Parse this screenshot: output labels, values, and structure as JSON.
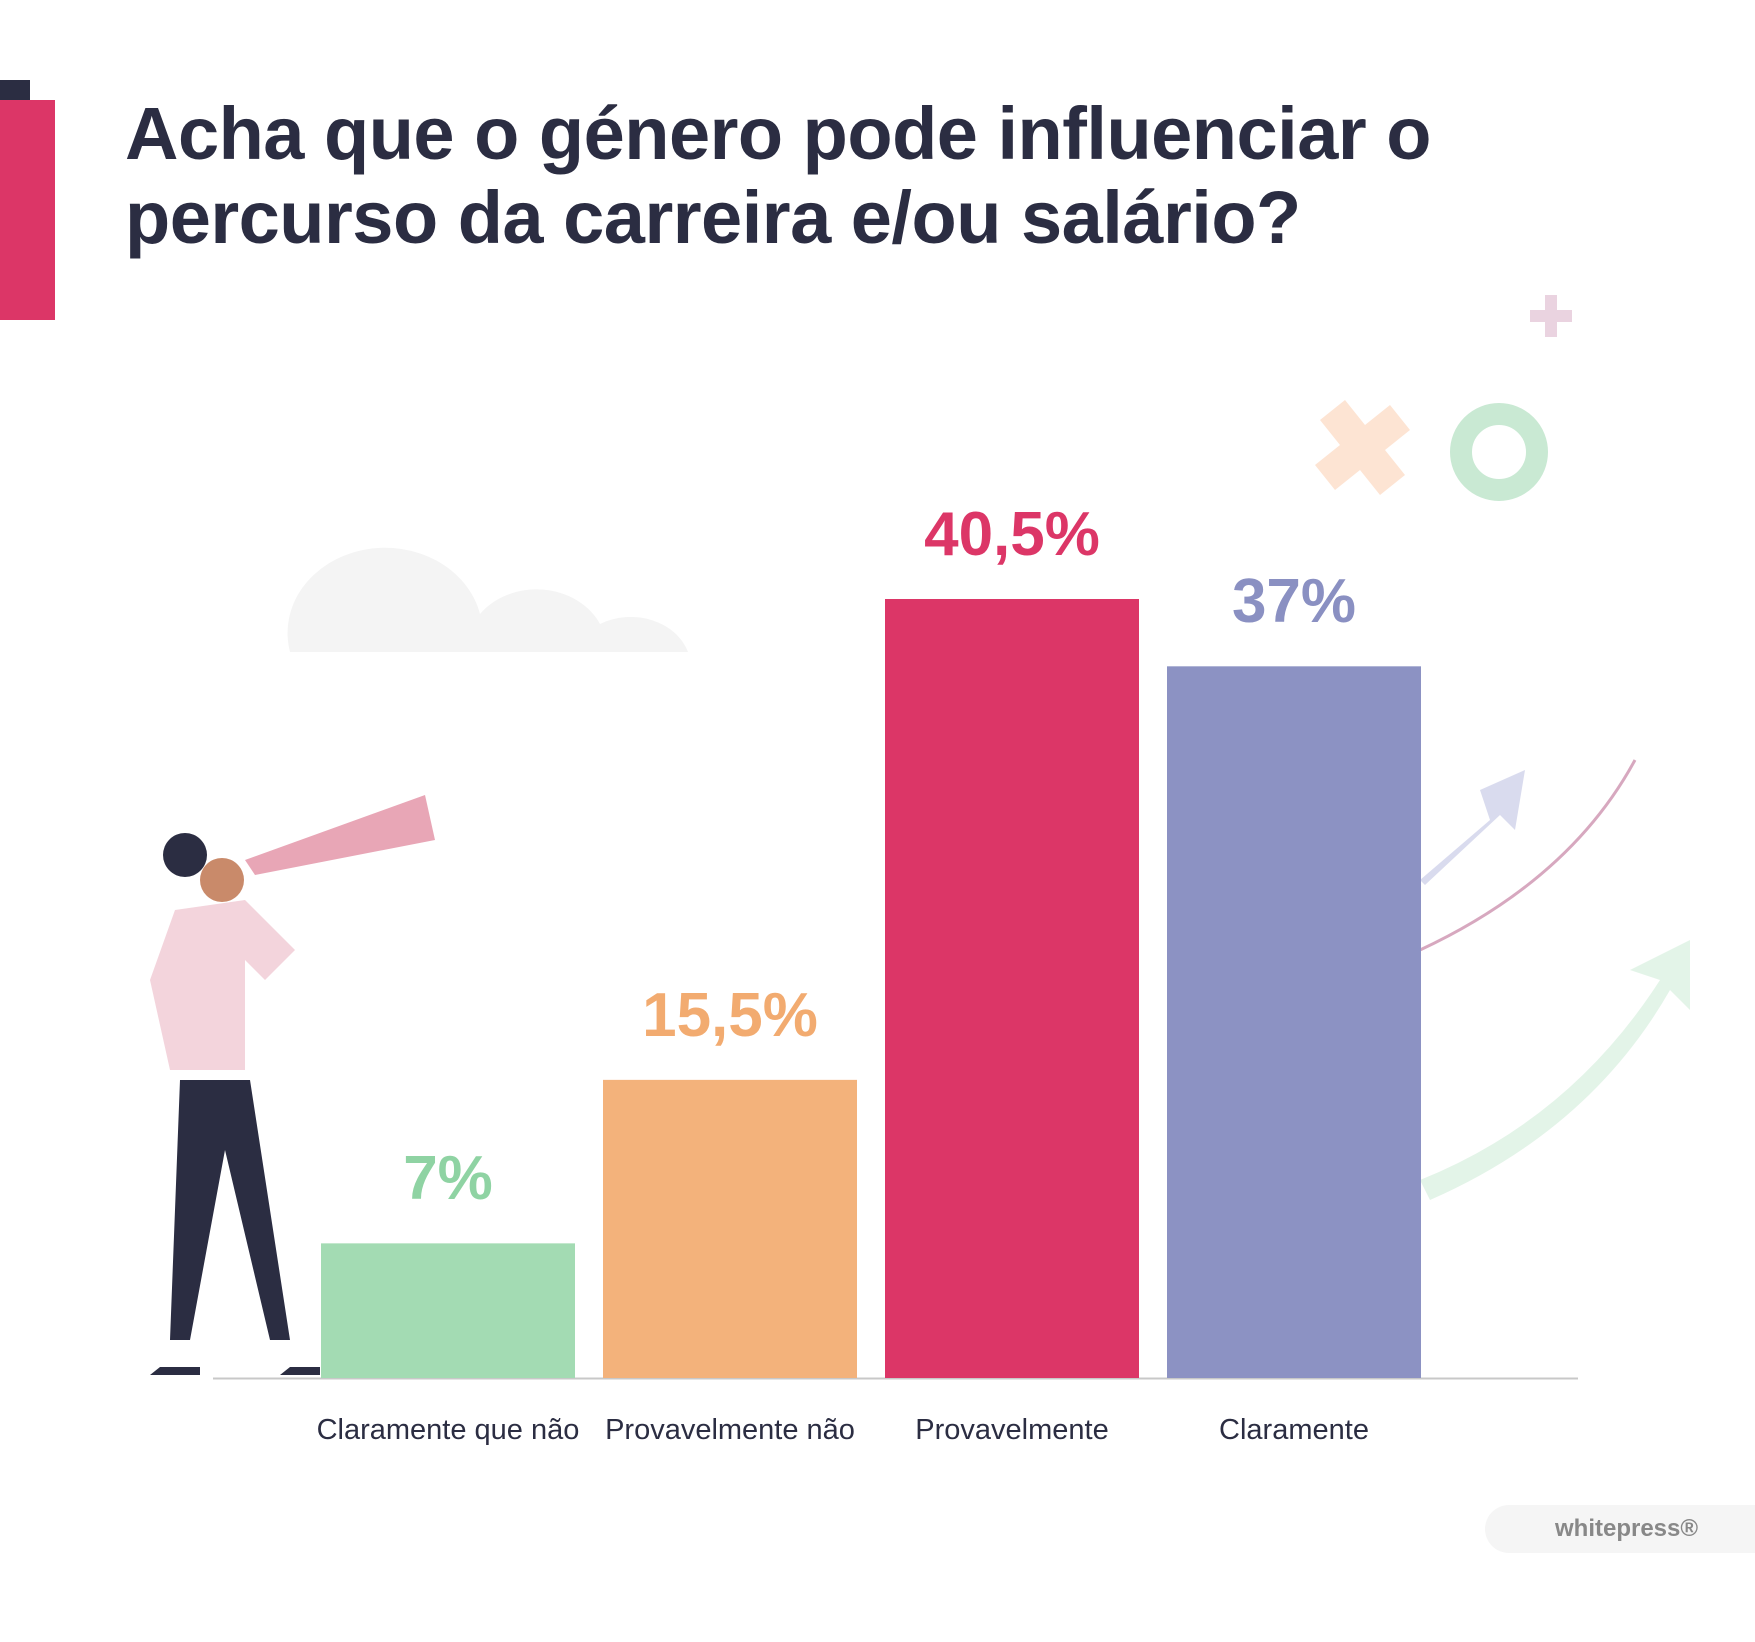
{
  "chart_data": {
    "type": "bar",
    "title": "Acha que o género pode influenciar o percurso da carreira e/ou salário?",
    "categories": [
      "Claramente que não",
      "Provavelmente não",
      "Provavelmente",
      "Claramente"
    ],
    "values": [
      7,
      15.5,
      40.5,
      37
    ],
    "value_labels": [
      "7%",
      "15,5%",
      "40,5%",
      "37%"
    ],
    "colors": [
      "#a3dbb3",
      "#f3b27b",
      "#dc3667",
      "#8c92c3"
    ],
    "label_colors": [
      "#8fd3a3",
      "#f2ab70",
      "#dc3667",
      "#8a90c2"
    ]
  },
  "logo": "whitepress®"
}
